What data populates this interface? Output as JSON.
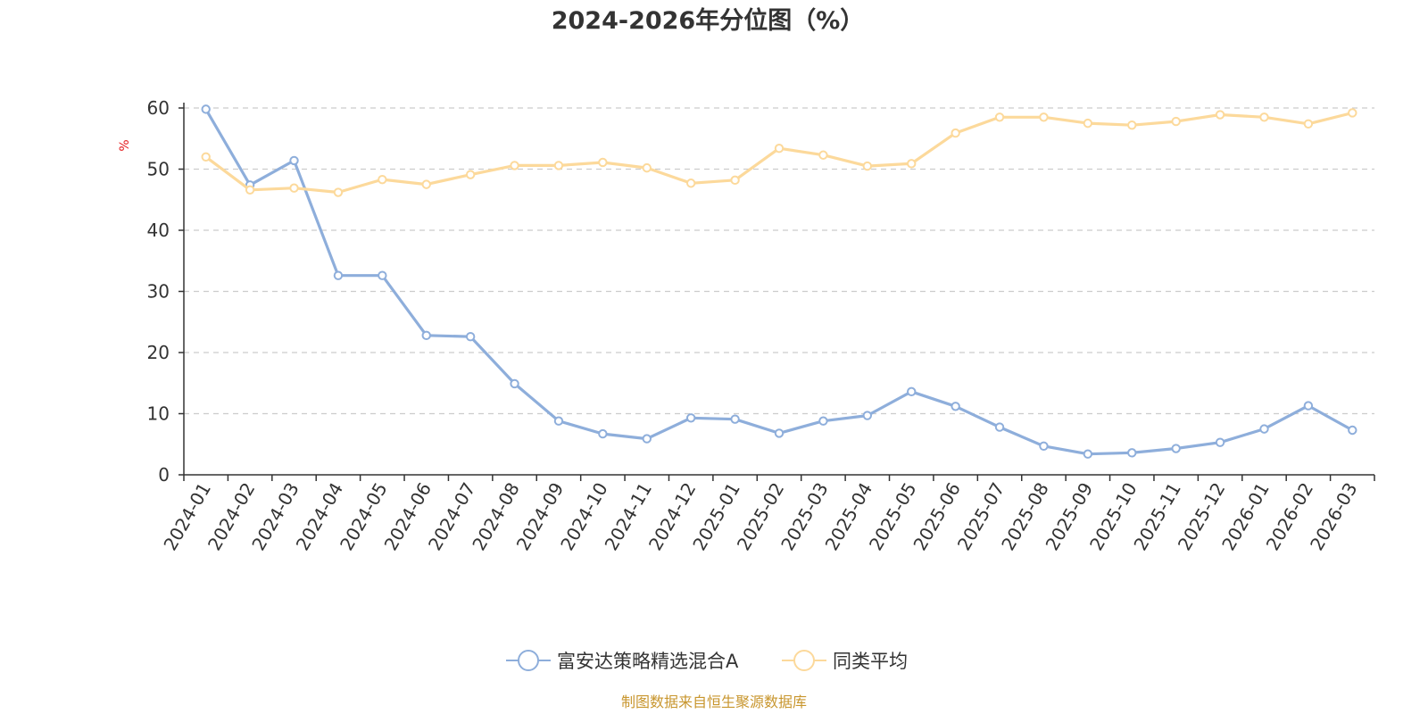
{
  "chart_data": {
    "type": "line",
    "title": "2024-2026年分位图（%）",
    "ylabel": "%",
    "xlabel": "",
    "ylim": [
      0,
      60
    ],
    "yticks": [
      0,
      10,
      20,
      30,
      40,
      50,
      60
    ],
    "grid": true,
    "legend_position": "bottom",
    "categories": [
      "2024-01",
      "2024-02",
      "2024-03",
      "2024-04",
      "2024-05",
      "2024-06",
      "2024-07",
      "2024-08",
      "2024-09",
      "2024-10",
      "2024-11",
      "2024-12",
      "2025-01",
      "2025-02",
      "2025-03",
      "2025-04",
      "2025-05",
      "2025-06",
      "2025-07",
      "2025-08",
      "2025-09",
      "2025-10",
      "2025-11",
      "2025-12",
      "2026-01",
      "2026-02",
      "2026-03"
    ],
    "series": [
      {
        "name": "富安达策略精选混合A",
        "color": "#8eaedb",
        "values": [
          59.8,
          47.4,
          51.4,
          32.6,
          32.6,
          22.8,
          22.6,
          14.9,
          8.8,
          6.7,
          5.9,
          9.3,
          9.1,
          6.8,
          8.8,
          9.7,
          13.6,
          11.2,
          7.8,
          4.7,
          3.4,
          3.6,
          4.3,
          5.3,
          7.5,
          11.3,
          7.3
        ]
      },
      {
        "name": "同类平均",
        "color": "#fcd99b",
        "values": [
          52.0,
          46.6,
          46.9,
          46.2,
          48.3,
          47.5,
          49.1,
          50.6,
          50.6,
          51.1,
          50.2,
          47.7,
          48.2,
          53.4,
          52.3,
          50.5,
          50.9,
          55.9,
          58.5,
          58.5,
          57.5,
          57.2,
          57.8,
          58.9,
          58.5,
          57.4,
          59.2
        ]
      }
    ]
  },
  "footer": {
    "source": "制图数据来自恒生聚源数据库"
  }
}
